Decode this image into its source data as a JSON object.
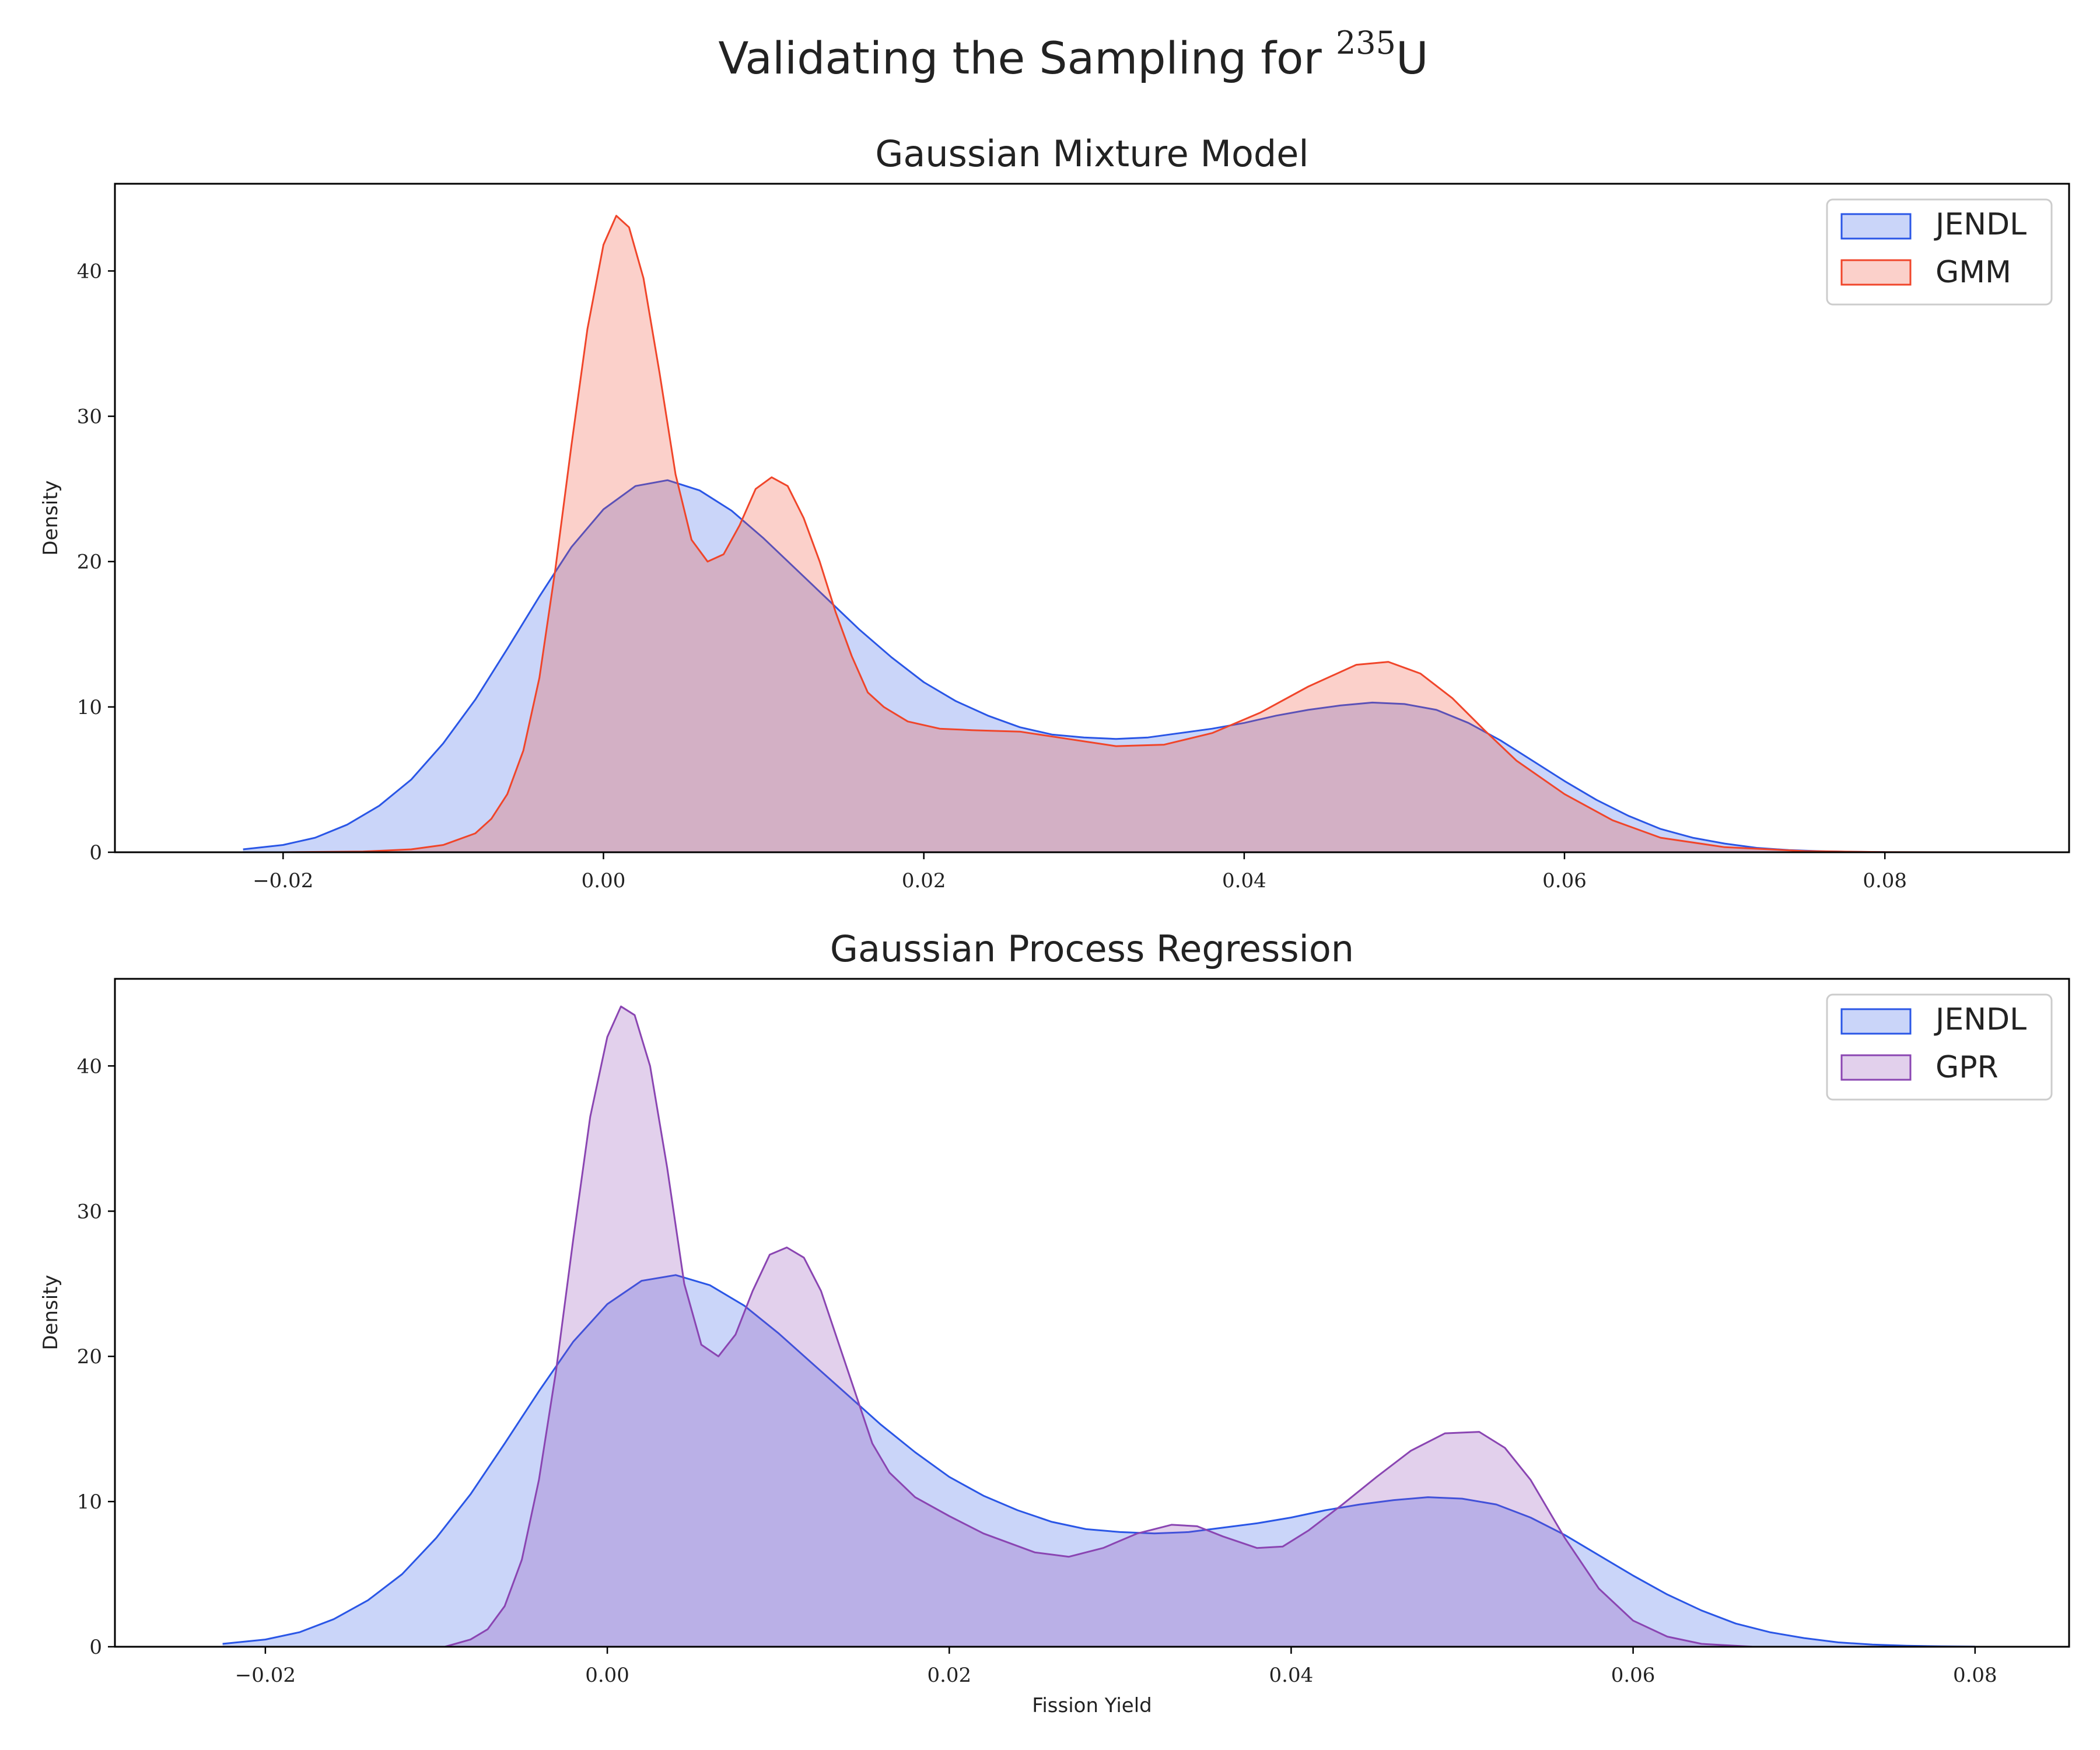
{
  "figure": {
    "title_main": "Validating the Sampling for ",
    "title_superscript": "235",
    "title_suffix": "U"
  },
  "colors": {
    "JENDL": "#2a56e6",
    "GMM": "#f0452a",
    "GPR": "#8a45b2"
  },
  "chart_data": [
    {
      "type": "area",
      "title": "Gaussian Mixture Model",
      "xlabel": "",
      "ylabel": "Density",
      "xlim": [
        -0.0305,
        0.0915
      ],
      "ylim": [
        0,
        46
      ],
      "xticks": [
        -0.02,
        0.0,
        0.02,
        0.04,
        0.06,
        0.08
      ],
      "xtick_labels": [
        "−0.02",
        "0.00",
        "0.02",
        "0.04",
        "0.06",
        "0.08"
      ],
      "yticks": [
        0,
        10,
        20,
        30,
        40
      ],
      "ytick_labels": [
        "0",
        "10",
        "20",
        "30",
        "40"
      ],
      "grid": false,
      "legend_position": "top-right",
      "legend": [
        "JENDL",
        "GMM"
      ],
      "series": [
        {
          "name": "JENDL",
          "color_key": "JENDL",
          "x": [
            -0.0225,
            -0.02,
            -0.018,
            -0.016,
            -0.014,
            -0.012,
            -0.01,
            -0.008,
            -0.006,
            -0.004,
            -0.002,
            0.0,
            0.002,
            0.004,
            0.006,
            0.008,
            0.01,
            0.012,
            0.014,
            0.016,
            0.018,
            0.02,
            0.022,
            0.024,
            0.026,
            0.028,
            0.03,
            0.032,
            0.034,
            0.036,
            0.038,
            0.04,
            0.042,
            0.044,
            0.046,
            0.048,
            0.05,
            0.052,
            0.054,
            0.056,
            0.058,
            0.06,
            0.062,
            0.064,
            0.066,
            0.068,
            0.07,
            0.072,
            0.074,
            0.076,
            0.078,
            0.08
          ],
          "y": [
            0.2,
            0.5,
            1.0,
            1.9,
            3.2,
            5.0,
            7.5,
            10.5,
            14.0,
            17.6,
            21.0,
            23.6,
            25.2,
            25.6,
            24.9,
            23.5,
            21.6,
            19.5,
            17.4,
            15.3,
            13.4,
            11.7,
            10.4,
            9.4,
            8.6,
            8.1,
            7.9,
            7.8,
            7.9,
            8.2,
            8.5,
            8.9,
            9.4,
            9.8,
            10.1,
            10.3,
            10.2,
            9.8,
            8.9,
            7.7,
            6.3,
            4.9,
            3.6,
            2.5,
            1.6,
            1.0,
            0.6,
            0.3,
            0.15,
            0.07,
            0.03,
            0.01
          ]
        },
        {
          "name": "GMM",
          "color_key": "GMM",
          "x": [
            -0.025,
            -0.02,
            -0.015,
            -0.012,
            -0.01,
            -0.008,
            -0.007,
            -0.006,
            -0.005,
            -0.004,
            -0.003,
            -0.002,
            -0.001,
            0.0,
            0.0008,
            0.0016,
            0.0025,
            0.0035,
            0.0045,
            0.0055,
            0.0065,
            0.0075,
            0.0085,
            0.0095,
            0.0105,
            0.0115,
            0.0125,
            0.0135,
            0.0145,
            0.0155,
            0.0165,
            0.0175,
            0.019,
            0.021,
            0.023,
            0.026,
            0.029,
            0.032,
            0.035,
            0.038,
            0.041,
            0.044,
            0.047,
            0.049,
            0.051,
            0.053,
            0.055,
            0.057,
            0.06,
            0.063,
            0.066,
            0.07,
            0.075,
            0.08,
            0.087
          ],
          "y": [
            0.0,
            0.0,
            0.05,
            0.2,
            0.5,
            1.3,
            2.3,
            4.0,
            7.0,
            12.0,
            19.5,
            28.0,
            36.0,
            41.8,
            43.8,
            43.0,
            39.5,
            33.0,
            26.0,
            21.5,
            20.0,
            20.5,
            22.5,
            25.0,
            25.8,
            25.2,
            23.0,
            20.0,
            16.5,
            13.5,
            11.0,
            10.0,
            9.0,
            8.5,
            8.4,
            8.3,
            7.8,
            7.3,
            7.4,
            8.2,
            9.6,
            11.4,
            12.9,
            13.1,
            12.3,
            10.6,
            8.4,
            6.3,
            4.0,
            2.2,
            1.0,
            0.35,
            0.08,
            0.01,
            0.0
          ]
        }
      ]
    },
    {
      "type": "area",
      "title": "Gaussian Process Regression",
      "xlabel": "Fission Yield",
      "ylabel": "Density",
      "xlim": [
        -0.0288,
        0.0855
      ],
      "ylim": [
        0,
        46
      ],
      "xticks": [
        -0.02,
        0.0,
        0.02,
        0.04,
        0.06,
        0.08
      ],
      "xtick_labels": [
        "−0.02",
        "0.00",
        "0.02",
        "0.04",
        "0.06",
        "0.08"
      ],
      "yticks": [
        0,
        10,
        20,
        30,
        40
      ],
      "ytick_labels": [
        "0",
        "10",
        "20",
        "30",
        "40"
      ],
      "grid": false,
      "legend_position": "top-right",
      "legend": [
        "JENDL",
        "GPR"
      ],
      "series": [
        {
          "name": "JENDL",
          "color_key": "JENDL",
          "x": [
            -0.0225,
            -0.02,
            -0.018,
            -0.016,
            -0.014,
            -0.012,
            -0.01,
            -0.008,
            -0.006,
            -0.004,
            -0.002,
            0.0,
            0.002,
            0.004,
            0.006,
            0.008,
            0.01,
            0.012,
            0.014,
            0.016,
            0.018,
            0.02,
            0.022,
            0.024,
            0.026,
            0.028,
            0.03,
            0.032,
            0.034,
            0.036,
            0.038,
            0.04,
            0.042,
            0.044,
            0.046,
            0.048,
            0.05,
            0.052,
            0.054,
            0.056,
            0.058,
            0.06,
            0.062,
            0.064,
            0.066,
            0.068,
            0.07,
            0.072,
            0.074,
            0.076,
            0.078,
            0.08
          ],
          "y": [
            0.2,
            0.5,
            1.0,
            1.9,
            3.2,
            5.0,
            7.5,
            10.5,
            14.0,
            17.6,
            21.0,
            23.6,
            25.2,
            25.6,
            24.9,
            23.5,
            21.6,
            19.5,
            17.4,
            15.3,
            13.4,
            11.7,
            10.4,
            9.4,
            8.6,
            8.1,
            7.9,
            7.8,
            7.9,
            8.2,
            8.5,
            8.9,
            9.4,
            9.8,
            10.1,
            10.3,
            10.2,
            9.8,
            8.9,
            7.7,
            6.3,
            4.9,
            3.6,
            2.5,
            1.6,
            1.0,
            0.6,
            0.3,
            0.15,
            0.07,
            0.03,
            0.01
          ]
        },
        {
          "name": "GPR",
          "color_key": "GPR",
          "x": [
            -0.0095,
            -0.008,
            -0.007,
            -0.006,
            -0.005,
            -0.004,
            -0.003,
            -0.002,
            -0.001,
            0.0,
            0.0008,
            0.0016,
            0.0025,
            0.0035,
            0.0045,
            0.0055,
            0.0065,
            0.0075,
            0.0085,
            0.0095,
            0.0105,
            0.0115,
            0.0125,
            0.0135,
            0.0145,
            0.0155,
            0.0165,
            0.018,
            0.02,
            0.022,
            0.025,
            0.027,
            0.029,
            0.031,
            0.033,
            0.0345,
            0.036,
            0.038,
            0.0395,
            0.041,
            0.043,
            0.045,
            0.047,
            0.049,
            0.051,
            0.0525,
            0.054,
            0.056,
            0.058,
            0.06,
            0.062,
            0.064,
            0.067
          ],
          "y": [
            0.0,
            0.5,
            1.2,
            2.8,
            6.0,
            11.5,
            19.0,
            28.0,
            36.5,
            42.0,
            44.1,
            43.5,
            40.0,
            33.0,
            25.0,
            20.8,
            20.0,
            21.5,
            24.5,
            27.0,
            27.5,
            26.8,
            24.5,
            21.0,
            17.5,
            14.0,
            12.0,
            10.3,
            9.0,
            7.8,
            6.5,
            6.2,
            6.8,
            7.8,
            8.4,
            8.3,
            7.6,
            6.8,
            6.9,
            8.0,
            9.8,
            11.7,
            13.5,
            14.7,
            14.8,
            13.7,
            11.5,
            7.5,
            4.0,
            1.8,
            0.7,
            0.2,
            0.0
          ]
        }
      ]
    }
  ]
}
